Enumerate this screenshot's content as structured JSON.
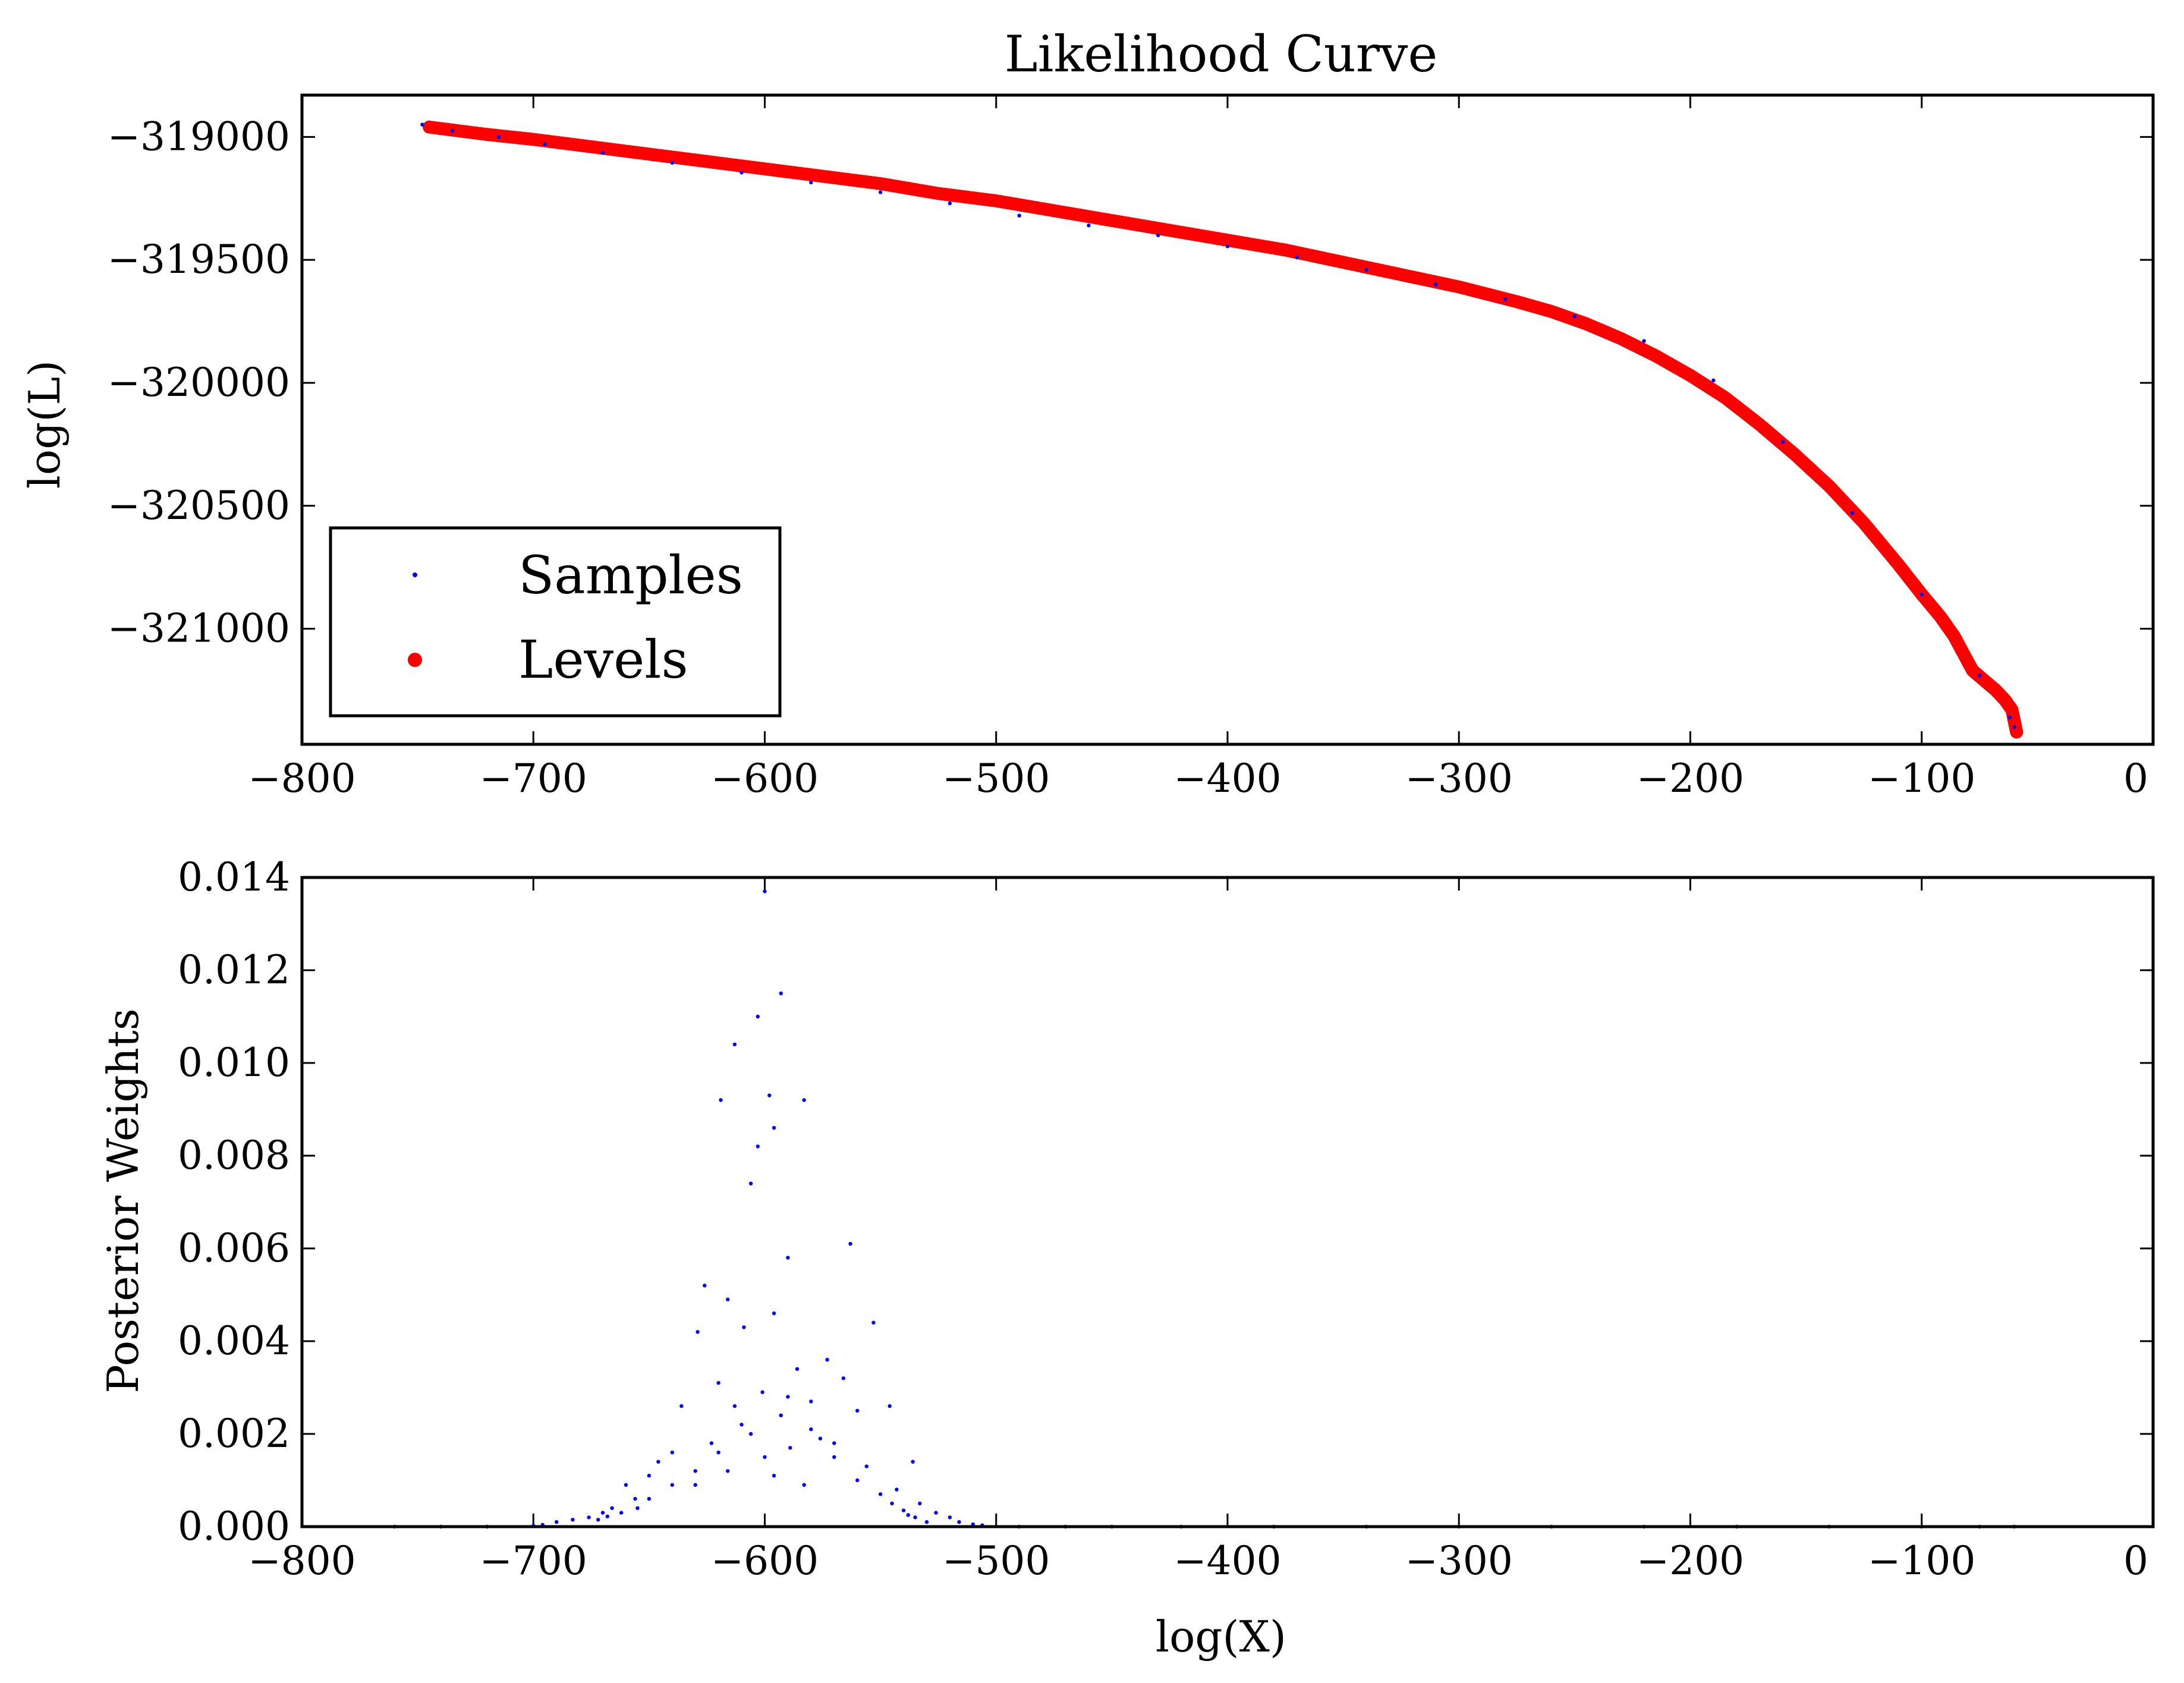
{
  "colors": {
    "samples": "#0000ff",
    "levels": "#ff0000",
    "frame": "#000000",
    "background": "#ffffff"
  },
  "chart_data": [
    {
      "type": "scatter",
      "title": "Likelihood Curve",
      "xlabel": "",
      "ylabel": "log(L)",
      "xlim": [
        -800,
        0
      ],
      "ylim": [
        -321470,
        -318830
      ],
      "xticks": [
        -800,
        -700,
        -600,
        -500,
        -400,
        -300,
        -200,
        -100,
        0
      ],
      "xtick_labels": [
        "−800",
        "−700",
        "−600",
        "−500",
        "−400",
        "−300",
        "−200",
        "−100",
        "0"
      ],
      "yticks": [
        -319000,
        -319500,
        -320000,
        -320500,
        -321000
      ],
      "ytick_labels": [
        "−319000",
        "−319500",
        "−320000",
        "−320500",
        "−321000"
      ],
      "grid": false,
      "legend": {
        "location": "lower-left",
        "entries": [
          "Samples",
          "Levels"
        ]
      },
      "series": [
        {
          "name": "Levels",
          "marker": "circle",
          "color": "#ff0000",
          "x": [
            -745,
            -720,
            -700,
            -675,
            -650,
            -625,
            -600,
            -575,
            -550,
            -525,
            -500,
            -475,
            -450,
            -425,
            -400,
            -375,
            -350,
            -325,
            -300,
            -275,
            -260,
            -245,
            -230,
            -215,
            -200,
            -185,
            -170,
            -155,
            -140,
            -125,
            -110,
            -100,
            -92,
            -86,
            -82,
            -78,
            -73,
            -68,
            -64,
            -61,
            -59
          ],
          "y": [
            -318960,
            -318990,
            -319010,
            -319040,
            -319070,
            -319100,
            -319130,
            -319160,
            -319190,
            -319230,
            -319260,
            -319300,
            -319340,
            -319380,
            -319420,
            -319460,
            -319510,
            -319560,
            -319610,
            -319670,
            -319710,
            -319760,
            -319820,
            -319890,
            -319970,
            -320060,
            -320170,
            -320290,
            -320420,
            -320570,
            -320740,
            -320860,
            -320950,
            -321030,
            -321100,
            -321170,
            -321210,
            -321250,
            -321290,
            -321330,
            -321420
          ]
        },
        {
          "name": "Samples",
          "marker": "point",
          "color": "#0000ff",
          "x": [
            -748,
            -735,
            -715,
            -695,
            -670,
            -640,
            -610,
            -580,
            -550,
            -520,
            -490,
            -460,
            -430,
            -400,
            -370,
            -340,
            -310,
            -280,
            -250,
            -220,
            -190,
            -160,
            -130,
            -100,
            -75,
            -62,
            -60
          ],
          "y": [
            -318950,
            -318975,
            -319000,
            -319030,
            -319065,
            -319105,
            -319145,
            -319185,
            -319225,
            -319270,
            -319320,
            -319360,
            -319400,
            -319445,
            -319490,
            -319540,
            -319600,
            -319660,
            -319730,
            -319830,
            -319990,
            -320240,
            -320530,
            -320860,
            -321190,
            -321360,
            -321400
          ]
        }
      ]
    },
    {
      "type": "scatter",
      "title": "",
      "xlabel": "log(X)",
      "ylabel": "Posterior Weights",
      "xlim": [
        -800,
        0
      ],
      "ylim": [
        0,
        0.014
      ],
      "xticks": [
        -800,
        -700,
        -600,
        -500,
        -400,
        -300,
        -200,
        -100,
        0
      ],
      "xtick_labels": [
        "−800",
        "−700",
        "−600",
        "−500",
        "−400",
        "−300",
        "−200",
        "−100",
        "0"
      ],
      "yticks": [
        0,
        0.002,
        0.004,
        0.006,
        0.008,
        0.01,
        0.012,
        0.014
      ],
      "ytick_labels": [
        "0.000",
        "0.002",
        "0.004",
        "0.006",
        "0.008",
        "0.010",
        "0.012",
        "0.014"
      ],
      "grid": false,
      "series": [
        {
          "name": "Samples",
          "marker": "point",
          "color": "#0000ff",
          "x": [
            -600,
            -593,
            -603,
            -613,
            -598,
            -583,
            -619,
            -596,
            -603,
            -606,
            -563,
            -590,
            -626,
            -616,
            -596,
            -609,
            -553,
            -573,
            -629,
            -586,
            -566,
            -620,
            -601,
            -580,
            -613,
            -593,
            -636,
            -560,
            -546,
            -606,
            -576,
            -623,
            -589,
            -640,
            -570,
            -646,
            -556,
            -616,
            -596,
            -650,
            -536,
            -660,
            -583,
            -630,
            -543,
            -656,
            -666,
            -533,
            -670,
            -526,
            -676,
            -520,
            -683,
            -516,
            -690,
            -510,
            -696,
            -506,
            -700,
            -760,
            -740,
            -720,
            -490,
            -470,
            -450,
            -420,
            -380,
            -340,
            -300,
            -260,
            -220,
            -180,
            -140,
            -100,
            -75,
            -60,
            -610,
            -580,
            -620,
            -590,
            -570,
            -600,
            -630,
            -560,
            -640,
            -550,
            -650,
            -545,
            -655,
            -540,
            -662,
            -538,
            -668,
            -535,
            -672,
            -530
          ],
          "y": [
            0.0137,
            0.0115,
            0.011,
            0.0104,
            0.0093,
            0.0092,
            0.0092,
            0.0086,
            0.0082,
            0.0074,
            0.0061,
            0.0058,
            0.0052,
            0.0049,
            0.0046,
            0.0043,
            0.0044,
            0.0036,
            0.0042,
            0.0034,
            0.0032,
            0.0031,
            0.0029,
            0.0027,
            0.0026,
            0.0024,
            0.0026,
            0.0025,
            0.0026,
            0.002,
            0.0019,
            0.0018,
            0.0017,
            0.0016,
            0.0015,
            0.0014,
            0.0013,
            0.0012,
            0.0011,
            0.0011,
            0.0014,
            0.0009,
            0.0009,
            0.0009,
            0.0008,
            0.0006,
            0.0004,
            0.0005,
            0.0003,
            0.0003,
            0.0002,
            0.0002,
            0.00015,
            0.0001,
            0.0001,
            5e-05,
            4e-05,
            3e-05,
            2e-05,
            0.0,
            0.0,
            0.0,
            0.0,
            0.0,
            0.0,
            0.0,
            0.0,
            0.0,
            0.0,
            0.0,
            0.0,
            0.0,
            0.0,
            0.0,
            0.0,
            0.0,
            0.0022,
            0.0021,
            0.0016,
            0.0028,
            0.0018,
            0.0015,
            0.0012,
            0.001,
            0.0009,
            0.0007,
            0.0006,
            0.0005,
            0.0004,
            0.00035,
            0.0003,
            0.00025,
            0.00022,
            0.0002,
            0.00015,
            0.0001
          ]
        }
      ]
    }
  ]
}
